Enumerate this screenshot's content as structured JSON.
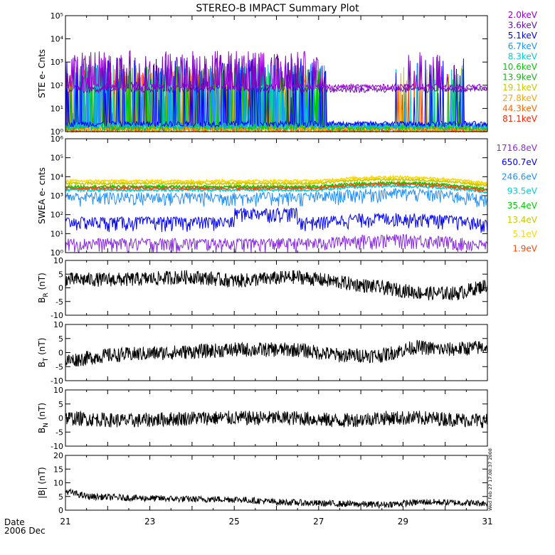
{
  "title": "STEREO-B IMPACT Summary Plot",
  "date_label": "Date",
  "date_value": "2006 Dec",
  "timestamp": "Wed Feb 27 17:08:37 2008",
  "x_ticks": [
    "21",
    "23",
    "25",
    "27",
    "29",
    "31"
  ],
  "x_range": [
    21,
    31
  ],
  "chart_data": [
    {
      "type": "line",
      "ylabel": "STE e- Cnts",
      "yscale": "log",
      "ylim": [
        1,
        100000
      ],
      "y_ticks": [
        "10⁰",
        "10¹",
        "10²",
        "10³",
        "10⁴",
        "10⁵"
      ],
      "legend_placement": "right",
      "series": [
        {
          "name": "2.0keV",
          "color": "#9400d3",
          "level": 80,
          "spike_max": 3000
        },
        {
          "name": "3.6keV",
          "color": "#6a0dad",
          "level": 60,
          "spike_max": 2000
        },
        {
          "name": "5.1keV",
          "color": "#0000ff",
          "level": 2,
          "spike_max": 1500
        },
        {
          "name": "6.7keV",
          "color": "#1e90ff",
          "level": 1.8,
          "spike_max": 1000
        },
        {
          "name": "8.3keV",
          "color": "#00ced1",
          "level": 1.6,
          "spike_max": 800
        },
        {
          "name": "10.6keV",
          "color": "#00cc00",
          "level": 1.5,
          "spike_max": 700
        },
        {
          "name": "13.9keV",
          "color": "#22b022",
          "level": 1.4,
          "spike_max": 600
        },
        {
          "name": "19.1keV",
          "color": "#c8c800",
          "level": 1.3,
          "spike_max": 600
        },
        {
          "name": "27.8keV",
          "color": "#ffa500",
          "level": 1.2,
          "spike_max": 500
        },
        {
          "name": "44.3keV",
          "color": "#ff6600",
          "level": 1.1,
          "spike_max": 500
        },
        {
          "name": "81.1keV",
          "color": "#ff2200",
          "level": 1.0,
          "spike_max": 400
        }
      ]
    },
    {
      "type": "line",
      "ylabel": "SWEA e- cnts",
      "yscale": "log",
      "ylim": [
        1,
        1000000
      ],
      "y_ticks": [
        "10⁰",
        "10¹",
        "10²",
        "10³",
        "10⁴",
        "10⁵",
        "10⁶"
      ],
      "legend_placement": "right",
      "series": [
        {
          "name": "1716.8eV",
          "color": "#8a2be2",
          "level": 3
        },
        {
          "name": "650.7eV",
          "color": "#0000ff",
          "level": 40
        },
        {
          "name": "246.6eV",
          "color": "#1e90ff",
          "level": 800
        },
        {
          "name": "93.5eV",
          "color": "#00ced1",
          "level": 2000
        },
        {
          "name": "35.4eV",
          "color": "#00cc00",
          "level": 3000
        },
        {
          "name": "13.4eV",
          "color": "#c8c800",
          "level": 4500
        },
        {
          "name": "5.1eV",
          "color": "#ffd700",
          "level": 6000
        },
        {
          "name": "1.9eV",
          "color": "#ff4500",
          "level": 2500
        }
      ]
    },
    {
      "type": "line",
      "ylabel": "B_R (nT)",
      "ylabel_main": "B",
      "ylabel_sub": "R",
      "ylabel_unit": "(nT)",
      "ylim": [
        -10,
        10
      ],
      "y_ticks": [
        "-10",
        "-5",
        "0",
        "5",
        "10"
      ],
      "series": [
        {
          "color": "#000000",
          "waypoints": [
            [
              21,
              3
            ],
            [
              22.5,
              3
            ],
            [
              24,
              4
            ],
            [
              25,
              2.5
            ],
            [
              26.5,
              4
            ],
            [
              27.5,
              2
            ],
            [
              28.5,
              0
            ],
            [
              29.5,
              -2
            ],
            [
              30.3,
              -2
            ],
            [
              31,
              1
            ]
          ]
        }
      ]
    },
    {
      "type": "line",
      "ylabel": "B_T (nT)",
      "ylabel_main": "B",
      "ylabel_sub": "T",
      "ylabel_unit": "(nT)",
      "ylim": [
        -10,
        10
      ],
      "y_ticks": [
        "-10",
        "-5",
        "0",
        "5",
        "10"
      ],
      "series": [
        {
          "color": "#000000",
          "waypoints": [
            [
              21,
              -3
            ],
            [
              22,
              -1
            ],
            [
              23.5,
              0
            ],
            [
              25,
              1
            ],
            [
              26.5,
              1
            ],
            [
              27.5,
              -1
            ],
            [
              28.5,
              -1
            ],
            [
              29.3,
              2
            ],
            [
              30,
              1
            ],
            [
              31,
              2
            ]
          ]
        }
      ]
    },
    {
      "type": "line",
      "ylabel": "B_N (nT)",
      "ylabel_main": "B",
      "ylabel_sub": "N",
      "ylabel_unit": "(nT)",
      "ylim": [
        -10,
        10
      ],
      "y_ticks": [
        "-10",
        "-5",
        "0",
        "5",
        "10"
      ],
      "series": [
        {
          "color": "#000000",
          "waypoints": [
            [
              21,
              0
            ],
            [
              22.5,
              -1
            ],
            [
              24,
              0
            ],
            [
              25.5,
              0
            ],
            [
              26.5,
              0
            ],
            [
              27.5,
              -1
            ],
            [
              28.5,
              0
            ],
            [
              29.5,
              0
            ],
            [
              31,
              -1
            ]
          ]
        }
      ]
    },
    {
      "type": "line",
      "ylabel": "|B| (nT)",
      "ylabel_main": "|B|",
      "ylabel_sub": "",
      "ylabel_unit": "(nT)",
      "ylim": [
        0,
        20
      ],
      "y_ticks": [
        "0",
        "5",
        "10",
        "15",
        "20"
      ],
      "series": [
        {
          "color": "#000000",
          "waypoints": [
            [
              21,
              7
            ],
            [
              21.5,
              5
            ],
            [
              22.5,
              4.5
            ],
            [
              24,
              4
            ],
            [
              25,
              4
            ],
            [
              26,
              3
            ],
            [
              27,
              2.5
            ],
            [
              28.5,
              2
            ],
            [
              29.5,
              3
            ],
            [
              31,
              2.5
            ]
          ]
        }
      ]
    }
  ]
}
